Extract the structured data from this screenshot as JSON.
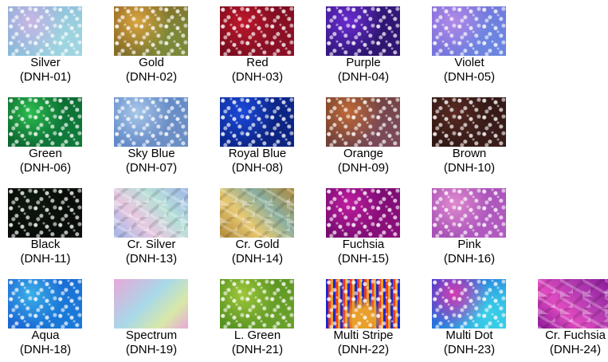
{
  "swatches": [
    {
      "name": "Silver",
      "code": "(DNH-01)",
      "colors": [
        "#7fa9d6",
        "#c9b6e4",
        "#9fd6e0"
      ],
      "style": "sparkle"
    },
    {
      "name": "Gold",
      "code": "(DNH-02)",
      "colors": [
        "#8a5a1c",
        "#d9a640",
        "#7c8a3a"
      ],
      "style": "sparkle"
    },
    {
      "name": "Red",
      "code": "(DNH-03)",
      "colors": [
        "#6e0a18",
        "#c0182c",
        "#8c1026"
      ],
      "style": "sparkle"
    },
    {
      "name": "Purple",
      "code": "(DNH-04)",
      "colors": [
        "#3a1a8c",
        "#6a2ad0",
        "#2e1670"
      ],
      "style": "sparkle"
    },
    {
      "name": "Violet",
      "code": "(DNH-05)",
      "colors": [
        "#7f68d8",
        "#b08ae8",
        "#6a86e0"
      ],
      "style": "sparkle"
    },
    {
      "name": "Green",
      "code": "(DNH-06)",
      "colors": [
        "#0a5a28",
        "#2bbf4f",
        "#0e7a3a"
      ],
      "style": "sparkle"
    },
    {
      "name": "Sky Blue",
      "code": "(DNH-07)",
      "colors": [
        "#5a86c8",
        "#a9c7e8",
        "#6d8fc6"
      ],
      "style": "sparkle"
    },
    {
      "name": "Royal Blue",
      "code": "(DNH-08)",
      "colors": [
        "#0a2a9a",
        "#1c4ad8",
        "#0d2480"
      ],
      "style": "sparkle"
    },
    {
      "name": "Orange",
      "code": "(DNH-09)",
      "colors": [
        "#6a3a22",
        "#c06a3a",
        "#7a4a5a"
      ],
      "style": "sparkle"
    },
    {
      "name": "Brown",
      "code": "(DNH-10)",
      "colors": [
        "#2a1410",
        "#5a2a22",
        "#3a1c1a"
      ],
      "style": "sparkle"
    },
    {
      "name": "Black",
      "code": "(DNH-11)",
      "colors": [
        "#050805",
        "#0e1a0e",
        "#0a0f0a"
      ],
      "style": "sparkle"
    },
    {
      "name": "Cr. Silver",
      "code": "(DNH-13)",
      "colors": [
        "#9fb4e8",
        "#e8c8e0",
        "#b6e0d8"
      ],
      "style": "crystal"
    },
    {
      "name": "Cr. Gold",
      "code": "(DNH-14)",
      "colors": [
        "#b08a3a",
        "#e8c870",
        "#8ab0a0"
      ],
      "style": "crystal"
    },
    {
      "name": "Fuchsia",
      "code": "(DNH-15)",
      "colors": [
        "#6a0a6a",
        "#c01ca0",
        "#8a0e7a"
      ],
      "style": "sparkle"
    },
    {
      "name": "Pink",
      "code": "(DNH-16)",
      "colors": [
        "#a24ab0",
        "#e08ad0",
        "#b05ac0"
      ],
      "style": "sparkle"
    },
    {
      "name": "Aqua",
      "code": "(DNH-18)",
      "colors": [
        "#1a5ad0",
        "#3ab0e8",
        "#1a7ad8"
      ],
      "style": "sparkle"
    },
    {
      "name": "Spectrum",
      "code": "(DNH-19)",
      "colors": [
        "#e8a8d8",
        "#a8d8e8",
        "#d8e8a8"
      ],
      "style": "smooth"
    },
    {
      "name": "L. Green",
      "code": "(DNH-21)",
      "colors": [
        "#4a8a1a",
        "#a0c83a",
        "#6aa02a"
      ],
      "style": "sparkle"
    },
    {
      "name": "Multi Stripe",
      "code": "(DNH-22)",
      "colors": [
        "#1a2ad0",
        "#e83a2a",
        "#e8a02a"
      ],
      "style": "stripe"
    },
    {
      "name": "Multi Dot",
      "code": "(DNH-23)",
      "colors": [
        "#1a3ad8",
        "#d83ab0",
        "#3ad0e8"
      ],
      "style": "sparkle"
    },
    {
      "name": "Cr. Fuchsia",
      "code": "(DNH-24)",
      "colors": [
        "#8a1a9a",
        "#e04ac0",
        "#b03ab0"
      ],
      "style": "crystal"
    }
  ]
}
